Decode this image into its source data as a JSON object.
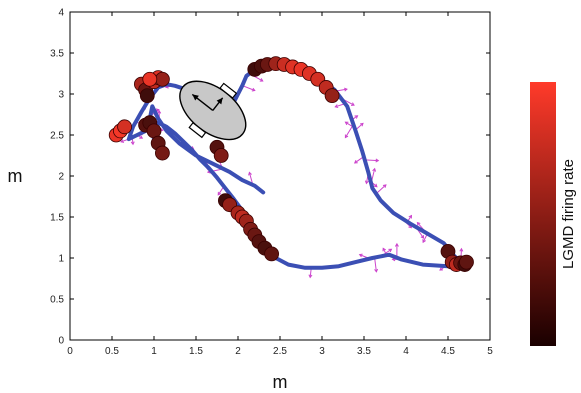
{
  "chart_data": {
    "type": "scatter",
    "xlabel": "m",
    "ylabel": "m",
    "xlim": [
      0,
      5
    ],
    "ylim": [
      0,
      4
    ],
    "xticks": [
      "0",
      "0.5",
      "1",
      "1.5",
      "2",
      "2.5",
      "3",
      "3.5",
      "4",
      "4.5",
      "5"
    ],
    "yticks": [
      "0",
      "0.5",
      "1",
      "1.5",
      "2",
      "2.5",
      "3",
      "3.5",
      "4"
    ],
    "grid": false,
    "trajectory": {
      "color": "#3b4fb4",
      "x": [
        2.3,
        2.2,
        2.05,
        1.9,
        1.7,
        1.5,
        1.3,
        1.15,
        1.05,
        0.98,
        0.95,
        0.9,
        0.8,
        0.7,
        0.75,
        0.85,
        0.95,
        1.05,
        1.15,
        1.25,
        1.4,
        1.55,
        1.7,
        1.85,
        1.95,
        2.05,
        2.1,
        2.2,
        2.3,
        2.4,
        2.55,
        2.75,
        2.95,
        3.15,
        3.3,
        3.4,
        3.48,
        3.55,
        3.6,
        3.7,
        3.85,
        4.05,
        4.25,
        4.45,
        4.55,
        4.62,
        4.7,
        4.5,
        4.2,
        3.95,
        3.8,
        3.6,
        3.4,
        3.2,
        3.0,
        2.8,
        2.6,
        2.45,
        2.35,
        2.25,
        2.15,
        2.05,
        1.95,
        1.85,
        1.75,
        1.65,
        1.55,
        1.45,
        1.35,
        1.25,
        1.15,
        1.05,
        1.0,
        0.98,
        1.0,
        1.05,
        1.1
      ],
      "y": [
        1.8,
        1.88,
        1.95,
        2.05,
        2.15,
        2.25,
        2.4,
        2.55,
        2.7,
        2.85,
        2.7,
        2.55,
        2.5,
        2.45,
        2.6,
        2.78,
        2.95,
        3.08,
        3.12,
        3.1,
        3.05,
        2.95,
        2.85,
        2.75,
        2.9,
        3.1,
        3.22,
        3.3,
        3.35,
        3.36,
        3.35,
        3.3,
        3.2,
        3.05,
        2.85,
        2.55,
        2.3,
        2.05,
        1.85,
        1.7,
        1.55,
        1.42,
        1.3,
        1.18,
        1.05,
        0.98,
        0.93,
        0.9,
        0.92,
        0.98,
        1.04,
        1.0,
        0.95,
        0.9,
        0.88,
        0.88,
        0.92,
        1.0,
        1.1,
        1.25,
        1.42,
        1.58,
        1.72,
        1.85,
        1.98,
        2.1,
        2.2,
        2.32,
        2.42,
        2.52,
        2.6,
        2.65,
        2.62,
        2.55,
        2.45,
        2.35,
        2.28
      ]
    },
    "spikes": {
      "colors": [
        "#2a0808",
        "#ff3a2a"
      ],
      "points": [
        {
          "x": 0.55,
          "y": 2.5,
          "r": 0.9
        },
        {
          "x": 0.6,
          "y": 2.55,
          "r": 0.95
        },
        {
          "x": 0.65,
          "y": 2.6,
          "r": 0.8
        },
        {
          "x": 0.9,
          "y": 2.62,
          "r": 0.2
        },
        {
          "x": 0.95,
          "y": 2.65,
          "r": 0.15
        },
        {
          "x": 1.0,
          "y": 2.55,
          "r": 0.3
        },
        {
          "x": 1.05,
          "y": 2.4,
          "r": 0.25
        },
        {
          "x": 1.1,
          "y": 2.28,
          "r": 0.35
        },
        {
          "x": 0.85,
          "y": 3.12,
          "r": 0.6
        },
        {
          "x": 0.9,
          "y": 3.05,
          "r": 0.3
        },
        {
          "x": 0.92,
          "y": 2.98,
          "r": 0.1
        },
        {
          "x": 1.0,
          "y": 3.15,
          "r": 0.7
        },
        {
          "x": 1.05,
          "y": 3.2,
          "r": 0.85
        },
        {
          "x": 1.1,
          "y": 3.18,
          "r": 0.5
        },
        {
          "x": 0.95,
          "y": 3.18,
          "r": 0.9
        },
        {
          "x": 1.75,
          "y": 2.35,
          "r": 0.2
        },
        {
          "x": 1.8,
          "y": 2.25,
          "r": 0.4
        },
        {
          "x": 1.85,
          "y": 1.7,
          "r": 0.1
        },
        {
          "x": 1.9,
          "y": 1.65,
          "r": 0.5
        },
        {
          "x": 2.0,
          "y": 1.55,
          "r": 0.6
        },
        {
          "x": 2.05,
          "y": 1.5,
          "r": 0.7
        },
        {
          "x": 2.1,
          "y": 1.45,
          "r": 0.55
        },
        {
          "x": 2.15,
          "y": 1.35,
          "r": 0.4
        },
        {
          "x": 2.2,
          "y": 1.28,
          "r": 0.3
        },
        {
          "x": 2.25,
          "y": 1.2,
          "r": 0.2
        },
        {
          "x": 2.32,
          "y": 1.12,
          "r": 0.15
        },
        {
          "x": 2.4,
          "y": 1.05,
          "r": 0.25
        },
        {
          "x": 2.2,
          "y": 3.3,
          "r": 0.1
        },
        {
          "x": 2.28,
          "y": 3.34,
          "r": 0.15
        },
        {
          "x": 2.35,
          "y": 3.36,
          "r": 0.3
        },
        {
          "x": 2.45,
          "y": 3.37,
          "r": 0.55
        },
        {
          "x": 2.55,
          "y": 3.36,
          "r": 0.75
        },
        {
          "x": 2.65,
          "y": 3.33,
          "r": 0.85
        },
        {
          "x": 2.75,
          "y": 3.3,
          "r": 0.9
        },
        {
          "x": 2.85,
          "y": 3.25,
          "r": 0.85
        },
        {
          "x": 2.95,
          "y": 3.18,
          "r": 0.8
        },
        {
          "x": 3.05,
          "y": 3.08,
          "r": 0.7
        },
        {
          "x": 3.12,
          "y": 2.98,
          "r": 0.5
        },
        {
          "x": 4.5,
          "y": 1.08,
          "r": 0.2
        },
        {
          "x": 4.55,
          "y": 0.95,
          "r": 0.5
        },
        {
          "x": 4.6,
          "y": 0.92,
          "r": 0.7
        },
        {
          "x": 4.65,
          "y": 0.94,
          "r": 0.3
        },
        {
          "x": 4.7,
          "y": 0.92,
          "r": 0.1
        },
        {
          "x": 4.72,
          "y": 0.95,
          "r": 0.25
        }
      ]
    },
    "flow_vectors": {
      "color": "#cc44cc",
      "count": 60
    },
    "robot": {
      "x": 1.7,
      "y": 2.8,
      "color": "#c8c8c8"
    },
    "colorbar": {
      "label": "LGMD firing rate",
      "colors": [
        "#1a0000",
        "#ff3a2a"
      ]
    }
  }
}
